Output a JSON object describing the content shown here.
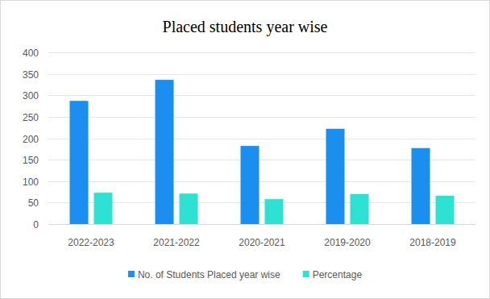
{
  "chart_data": {
    "type": "bar",
    "title": "Placed students year wise",
    "categories": [
      "2022-2023",
      "2021-2022",
      "2020-2021",
      "2019-2020",
      "2018-2019"
    ],
    "series": [
      {
        "name": "No. of Students Placed year wise",
        "color": "#1a8fef",
        "values": [
          287,
          336,
          182,
          222,
          177
        ]
      },
      {
        "name": "Percentage",
        "color": "#2de2d2",
        "values": [
          73,
          71,
          58,
          70,
          66
        ]
      }
    ],
    "ylim": [
      0,
      400
    ],
    "yticks": [
      0,
      50,
      100,
      150,
      200,
      250,
      300,
      350,
      400
    ],
    "grid": true,
    "legend": "bottom"
  }
}
